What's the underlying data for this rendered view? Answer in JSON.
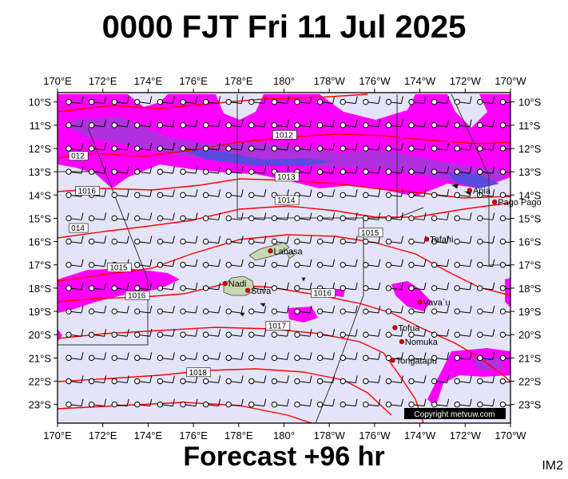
{
  "header": {
    "title": "0000 FJT Fri 11 Jul 2025"
  },
  "footer": {
    "forecast": "Forecast +96 hr",
    "tag": "IM2",
    "copyright": "Copyright metvuw.com"
  },
  "axes": {
    "lon_labels": [
      "170°E",
      "172°E",
      "174°E",
      "176°E",
      "178°E",
      "180°",
      "178°W",
      "176°W",
      "174°W",
      "172°W",
      "170°W"
    ],
    "lat_labels": [
      "10°S",
      "11°S",
      "12°S",
      "13°S",
      "14°S",
      "15°S",
      "16°S",
      "17°S",
      "18°S",
      "19°S",
      "20°S",
      "21°S",
      "22°S",
      "23°S"
    ]
  },
  "isobars": [
    {
      "value": "1012",
      "lon": 179.5,
      "lat": -11.5
    },
    {
      "value": "012",
      "lon": 170.5,
      "lat": -12.4
    },
    {
      "value": "1013",
      "lon": 179.6,
      "lat": -13.3
    },
    {
      "value": "1016",
      "lon": 170.8,
      "lat": -13.9
    },
    {
      "value": "1014",
      "lon": 179.6,
      "lat": -14.3
    },
    {
      "value": "014",
      "lon": 170.5,
      "lat": -15.5
    },
    {
      "value": "1015",
      "lon": -176.7,
      "lat": -15.7
    },
    {
      "value": "1015",
      "lon": 172.2,
      "lat": -17.2
    },
    {
      "value": "1016",
      "lon": -178.8,
      "lat": -18.3
    },
    {
      "value": "1016",
      "lon": 173.0,
      "lat": -18.4
    },
    {
      "value": "1017",
      "lon": 179.2,
      "lat": -19.7
    },
    {
      "value": "1018",
      "lon": 175.7,
      "lat": -21.7
    }
  ],
  "places": [
    {
      "name": "Labasa",
      "lon": 179.4,
      "lat": -16.4
    },
    {
      "name": "Nadi",
      "lon": 177.4,
      "lat": -17.8
    },
    {
      "name": "Suva",
      "lon": 178.4,
      "lat": -18.1
    },
    {
      "name": "Apia",
      "lon": -171.8,
      "lat": -13.8
    },
    {
      "name": "Pago Pago",
      "lon": -170.7,
      "lat": -14.3
    },
    {
      "name": "Tafahi",
      "lon": -173.7,
      "lat": -15.9
    },
    {
      "name": "Vava`u",
      "lon": -174.0,
      "lat": -18.6
    },
    {
      "name": "Tofua",
      "lon": -175.1,
      "lat": -19.7
    },
    {
      "name": "Nomuka",
      "lon": -174.8,
      "lat": -20.3
    },
    {
      "name": "Tongatapu",
      "lon": -175.2,
      "lat": -21.1
    }
  ],
  "colors": {
    "ocean": "#e4e4f8",
    "rain_light": "#ff00ff",
    "rain_mid": "#b030e0",
    "rain_heavy": "#5a4ae0",
    "isobar": "#ff0000",
    "land": "#c8d8b0"
  }
}
